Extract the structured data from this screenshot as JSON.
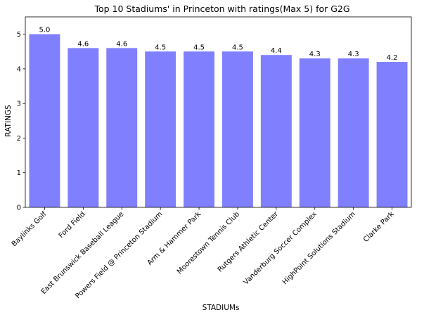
{
  "chart_data": {
    "type": "bar",
    "title": "Top 10 Stadiums' in Princeton with ratings(Max 5) for G2G",
    "xlabel": "STADIUMs",
    "ylabel": "RATINGS",
    "categories": [
      "Baylinks Golf",
      "Ford Field",
      "East Brunswick Baseball League",
      "Powers Field @ Princeton Stadium",
      "Arm & Hammer Park",
      "Moorestown Tennis Club",
      "Rutgers Athletic Center",
      "Vanderburg Soccer Complex",
      "HighPoint Solutions Stadium",
      "Clarke Park"
    ],
    "values": [
      5.0,
      4.6,
      4.6,
      4.5,
      4.5,
      4.5,
      4.4,
      4.3,
      4.3,
      4.2
    ],
    "value_labels": [
      "5.0",
      "4.6",
      "4.6",
      "4.5",
      "4.5",
      "4.5",
      "4.4",
      "4.3",
      "4.3",
      "4.2"
    ],
    "ylim": [
      0,
      5.5
    ],
    "yticks": [
      0,
      1,
      2,
      3,
      4,
      5
    ],
    "ytick_labels": [
      "0",
      "1",
      "2",
      "3",
      "4",
      "5"
    ],
    "grid": false,
    "legend": "none",
    "bar_color": "#8080ff"
  }
}
